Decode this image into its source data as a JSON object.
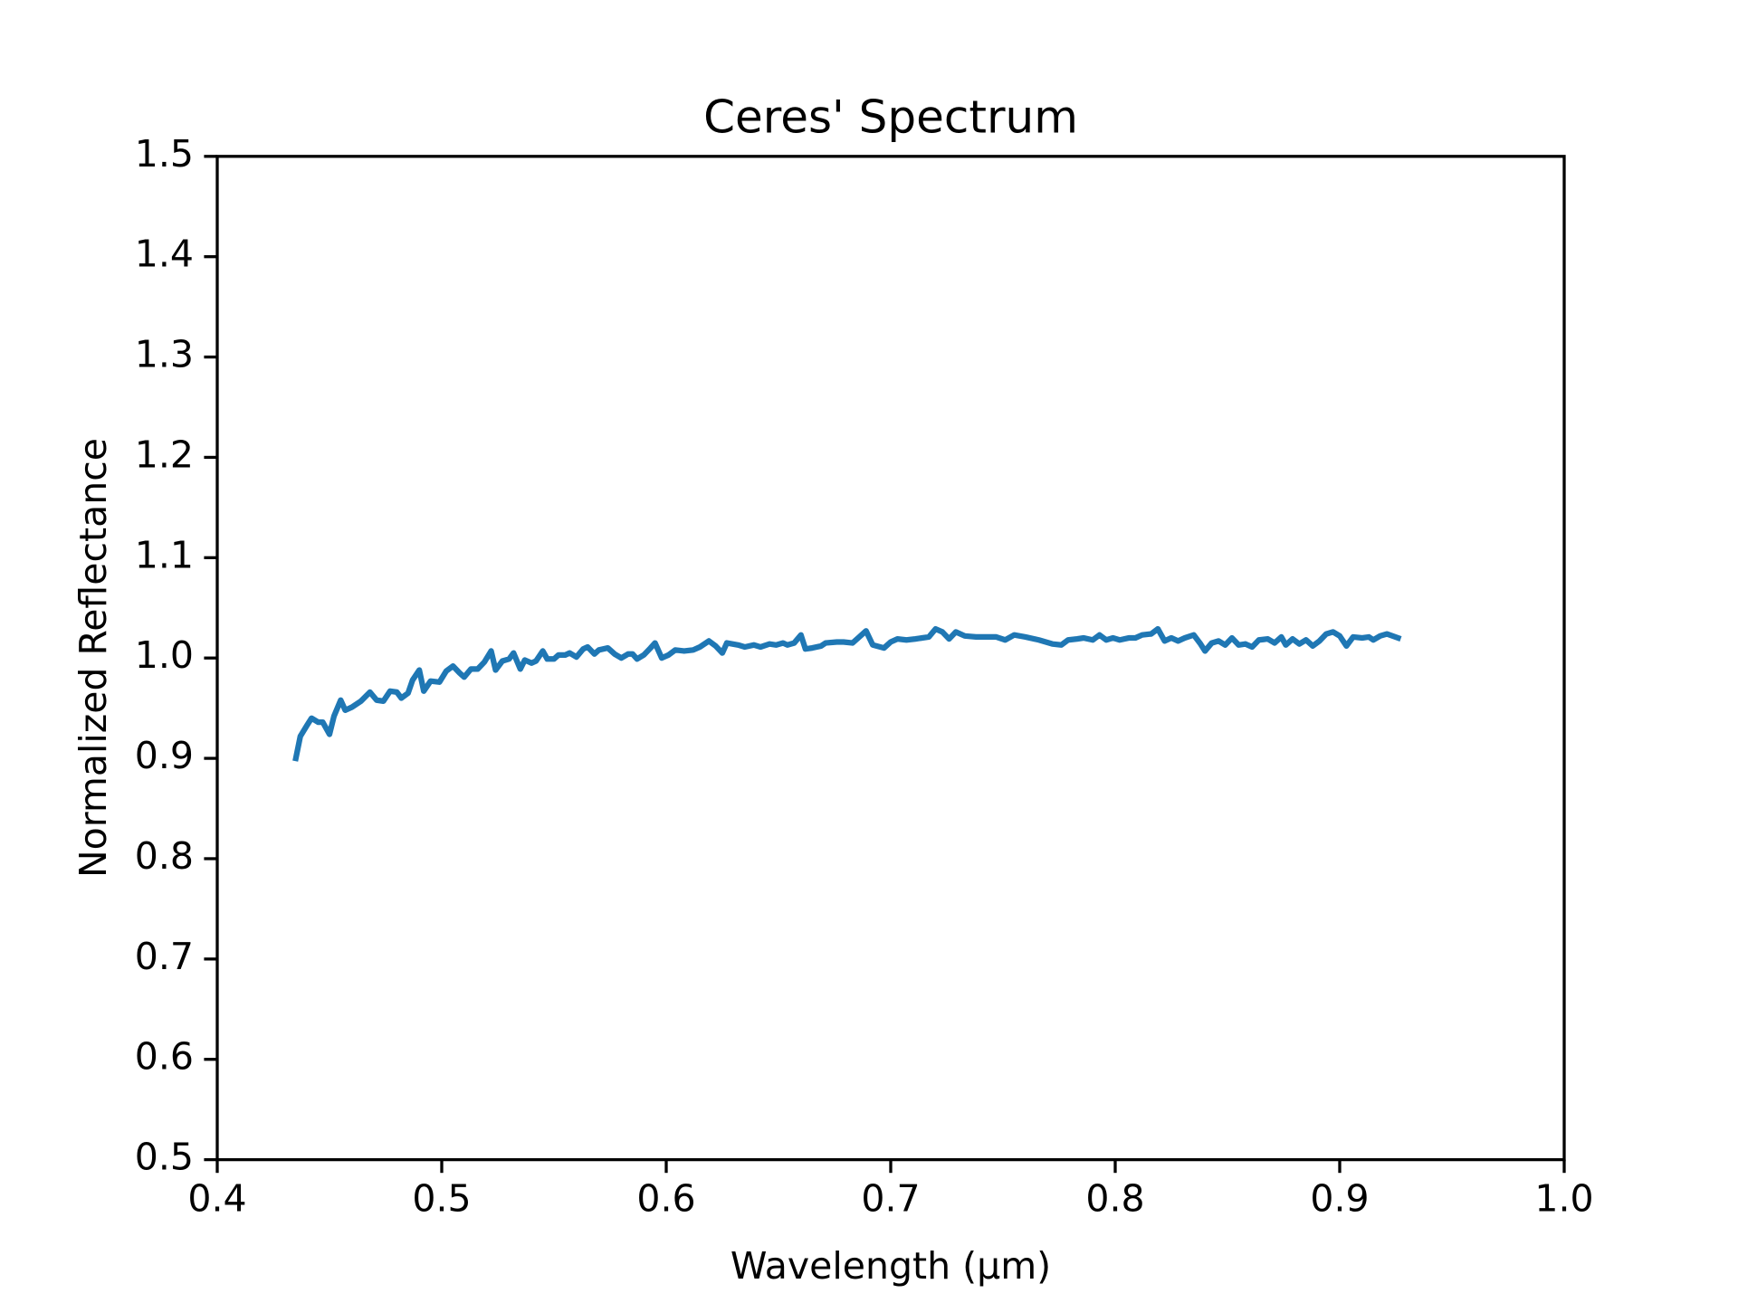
{
  "chart_data": {
    "type": "line",
    "title": "Ceres' Spectrum",
    "x_label": "Wavelength (µm)",
    "y_label": "Normalized Reflectance",
    "color": "#1f77b4",
    "xlim": [
      0.4,
      1.0
    ],
    "xticks": [
      0.4,
      0.5,
      0.6,
      0.7,
      0.8,
      0.9,
      {
        "value": 1.0,
        "label": "1.0"
      }
    ],
    "ylim": [
      0.5,
      1.5
    ],
    "yticks": [
      0.5,
      0.6,
      0.7,
      0.8,
      0.9,
      {
        "value": 1.0,
        "label": "1.0"
      },
      1.1,
      1.2,
      1.3,
      1.4,
      1.5
    ],
    "grid": false,
    "x": [
      0.435,
      0.437,
      0.44,
      0.442,
      0.445,
      0.447,
      0.45,
      0.452,
      0.455,
      0.457,
      0.46,
      0.464,
      0.468,
      0.471,
      0.474,
      0.477,
      0.48,
      0.482,
      0.485,
      0.487,
      0.49,
      0.492,
      0.495,
      0.499,
      0.502,
      0.505,
      0.508,
      0.51,
      0.513,
      0.516,
      0.519,
      0.522,
      0.524,
      0.527,
      0.53,
      0.532,
      0.535,
      0.537,
      0.54,
      0.542,
      0.545,
      0.547,
      0.55,
      0.552,
      0.555,
      0.557,
      0.56,
      0.563,
      0.565,
      0.568,
      0.57,
      0.574,
      0.577,
      0.58,
      0.583,
      0.585,
      0.587,
      0.59,
      0.593,
      0.595,
      0.598,
      0.601,
      0.604,
      0.608,
      0.612,
      0.615,
      0.619,
      0.622,
      0.625,
      0.627,
      0.632,
      0.635,
      0.639,
      0.642,
      0.646,
      0.649,
      0.652,
      0.654,
      0.657,
      0.66,
      0.662,
      0.665,
      0.669,
      0.671,
      0.676,
      0.679,
      0.683,
      0.686,
      0.689,
      0.692,
      0.697,
      0.7,
      0.703,
      0.707,
      0.711,
      0.714,
      0.717,
      0.72,
      0.723,
      0.726,
      0.729,
      0.733,
      0.738,
      0.743,
      0.747,
      0.751,
      0.755,
      0.76,
      0.766,
      0.772,
      0.776,
      0.779,
      0.783,
      0.786,
      0.79,
      0.793,
      0.796,
      0.799,
      0.802,
      0.806,
      0.809,
      0.812,
      0.816,
      0.819,
      0.822,
      0.825,
      0.828,
      0.831,
      0.835,
      0.838,
      0.84,
      0.843,
      0.846,
      0.849,
      0.852,
      0.855,
      0.858,
      0.861,
      0.864,
      0.868,
      0.871,
      0.874,
      0.876,
      0.879,
      0.882,
      0.885,
      0.888,
      0.891,
      0.894,
      0.897,
      0.9,
      0.903,
      0.906,
      0.91,
      0.913,
      0.915,
      0.918,
      0.921,
      0.926
    ],
    "values": [
      0.9,
      0.922,
      0.933,
      0.94,
      0.936,
      0.936,
      0.924,
      0.942,
      0.958,
      0.948,
      0.951,
      0.957,
      0.966,
      0.958,
      0.957,
      0.967,
      0.966,
      0.96,
      0.965,
      0.978,
      0.988,
      0.967,
      0.977,
      0.976,
      0.987,
      0.992,
      0.985,
      0.981,
      0.989,
      0.989,
      0.996,
      1.007,
      0.988,
      0.997,
      0.999,
      1.005,
      0.989,
      0.998,
      0.995,
      0.997,
      1.007,
      0.999,
      0.999,
      1.003,
      1.003,
      1.005,
      1.001,
      1.009,
      1.011,
      1.004,
      1.008,
      1.01,
      1.004,
      1.0,
      1.004,
      1.004,
      0.999,
      1.003,
      1.01,
      1.015,
      1.0,
      1.003,
      1.008,
      1.007,
      1.008,
      1.011,
      1.017,
      1.012,
      1.005,
      1.015,
      1.013,
      1.011,
      1.013,
      1.011,
      1.014,
      1.013,
      1.015,
      1.013,
      1.015,
      1.023,
      1.009,
      1.01,
      1.012,
      1.015,
      1.016,
      1.016,
      1.015,
      1.021,
      1.027,
      1.013,
      1.01,
      1.016,
      1.019,
      1.018,
      1.019,
      1.02,
      1.021,
      1.029,
      1.026,
      1.019,
      1.026,
      1.022,
      1.021,
      1.021,
      1.021,
      1.018,
      1.023,
      1.021,
      1.018,
      1.014,
      1.013,
      1.018,
      1.019,
      1.02,
      1.018,
      1.023,
      1.018,
      1.02,
      1.018,
      1.02,
      1.02,
      1.023,
      1.024,
      1.029,
      1.017,
      1.02,
      1.017,
      1.02,
      1.023,
      1.014,
      1.007,
      1.015,
      1.017,
      1.013,
      1.02,
      1.013,
      1.014,
      1.011,
      1.018,
      1.019,
      1.015,
      1.021,
      1.013,
      1.019,
      1.014,
      1.018,
      1.012,
      1.017,
      1.024,
      1.026,
      1.022,
      1.012,
      1.021,
      1.02,
      1.021,
      1.018,
      1.022,
      1.024,
      1.02
    ]
  }
}
